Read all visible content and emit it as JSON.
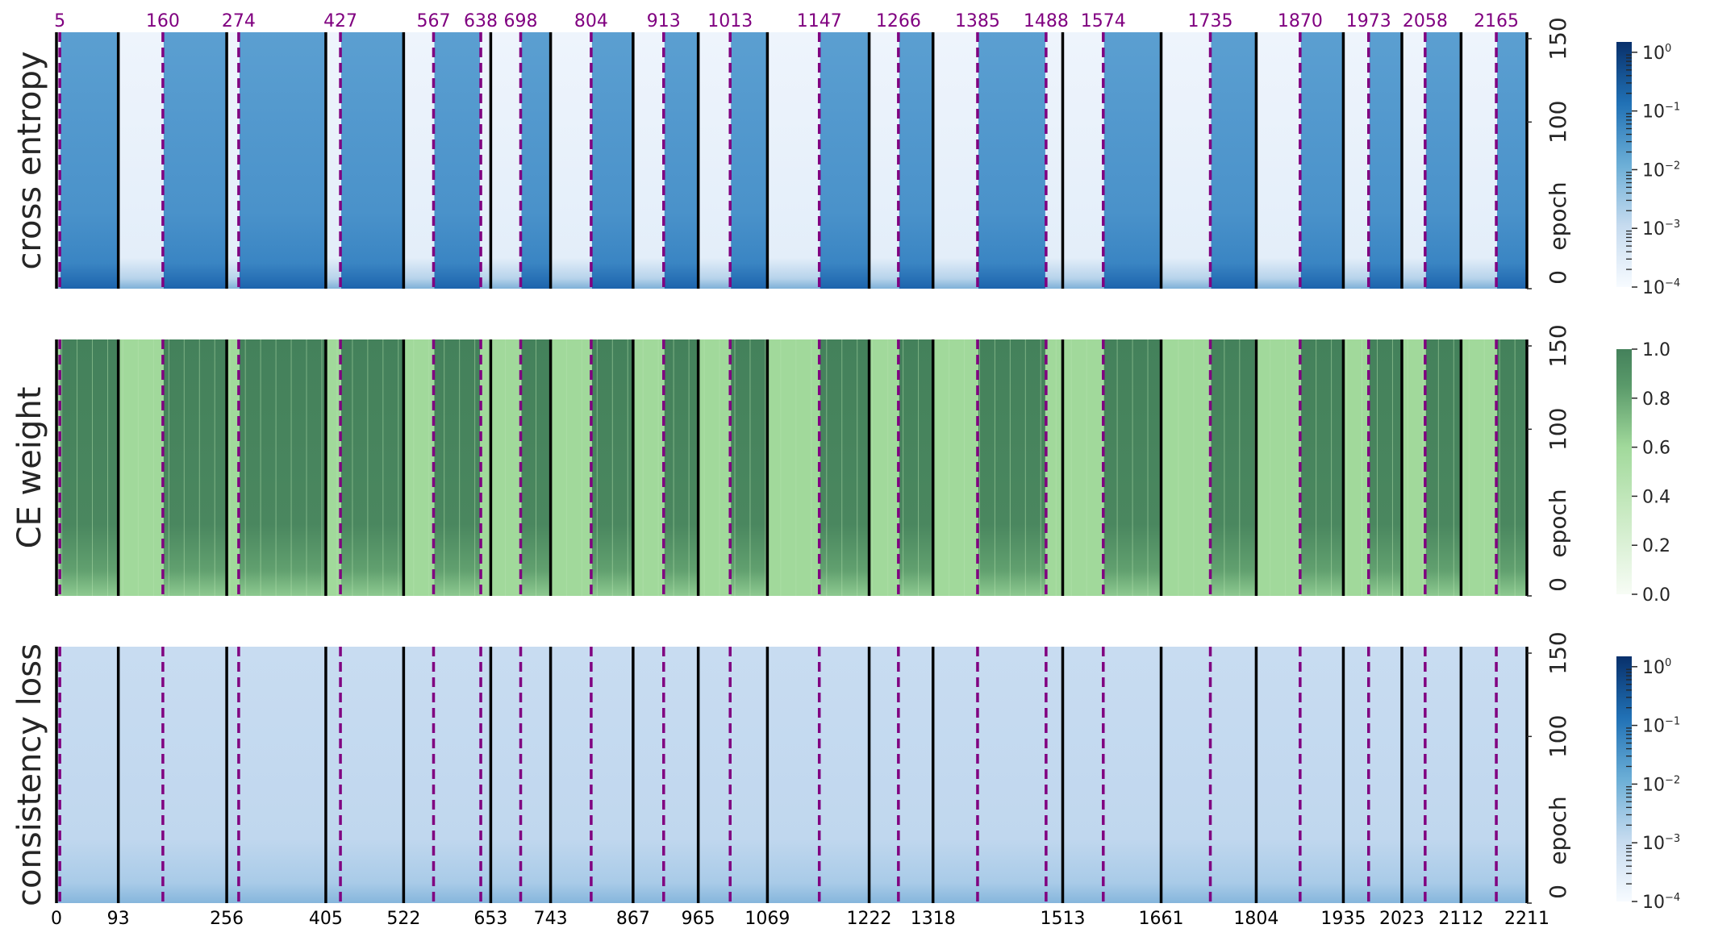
{
  "chart_data": {
    "type": "heatmap",
    "x_range": [
      0,
      2211
    ],
    "y_range": [
      0,
      150
    ],
    "colors": {
      "blues_light": "#f7fbff",
      "blues_dark": "#08306b",
      "greens_light": "#f7fcf5",
      "greens_mid": "#a1d99b",
      "greens_dark": "#44815b",
      "dashed_line": "#800080",
      "solid_line": "#000000"
    },
    "dashed_lines": {
      "values": [
        5,
        160,
        274,
        427,
        567,
        638,
        698,
        804,
        913,
        1013,
        1147,
        1266,
        1385,
        1488,
        1574,
        1735,
        1870,
        1973,
        2058,
        2165
      ],
      "labels": [
        "5",
        "160",
        "274",
        "427",
        "567",
        "638",
        "698",
        "804",
        "913",
        "1013",
        "1147",
        "1266",
        "1385",
        "1488",
        "1574",
        "1735",
        "1870",
        "1973",
        "2058",
        "2165"
      ]
    },
    "solid_lines": {
      "values": [
        0,
        93,
        256,
        405,
        522,
        653,
        743,
        867,
        965,
        1069,
        1222,
        1318,
        1513,
        1661,
        1804,
        1935,
        2023,
        2112,
        2211
      ],
      "labels": [
        "0",
        "93",
        "256",
        "405",
        "522",
        "653",
        "743",
        "867",
        "965",
        "1069",
        "1222",
        "1318",
        "1513",
        "1661",
        "1804",
        "1935",
        "2023",
        "2112",
        "2211"
      ]
    },
    "dark_bands": [
      [
        5,
        93
      ],
      [
        160,
        256
      ],
      [
        274,
        405
      ],
      [
        427,
        522
      ],
      [
        567,
        638
      ],
      [
        698,
        743
      ],
      [
        804,
        867
      ],
      [
        913,
        965
      ],
      [
        1013,
        1069
      ],
      [
        1147,
        1222
      ],
      [
        1266,
        1318
      ],
      [
        1385,
        1488
      ],
      [
        1574,
        1661
      ],
      [
        1735,
        1804
      ],
      [
        1870,
        1935
      ],
      [
        1973,
        2023
      ],
      [
        2058,
        2112
      ],
      [
        2165,
        2211
      ]
    ],
    "panels": [
      {
        "ylabel": "cross entropy",
        "colormap": "Blues",
        "scale": "log",
        "y_axis_label": "epoch",
        "y_ticks": [
          "0",
          "100",
          "150"
        ],
        "colorbar_ticks": [
          "10^0",
          "10^-1",
          "10^-2",
          "10^-3",
          "10^-4"
        ],
        "colorbar_range": [
          0.0001,
          1.5
        ]
      },
      {
        "ylabel": "CE weight",
        "colormap": "Greens",
        "scale": "linear",
        "y_axis_label": "epoch",
        "y_ticks": [
          "0",
          "100",
          "150"
        ],
        "colorbar_ticks": [
          "1.0",
          "0.8",
          "0.6",
          "0.4",
          "0.2",
          "0.0"
        ],
        "colorbar_range": [
          0.0,
          1.0
        ]
      },
      {
        "ylabel": "consistency loss",
        "colormap": "Blues",
        "scale": "log",
        "y_axis_label": "epoch",
        "y_ticks": [
          "0",
          "100",
          "150"
        ],
        "colorbar_ticks": [
          "10^0",
          "10^-1",
          "10^-2",
          "10^-3",
          "10^-4"
        ],
        "colorbar_range": [
          0.0001,
          1.5
        ]
      }
    ]
  }
}
